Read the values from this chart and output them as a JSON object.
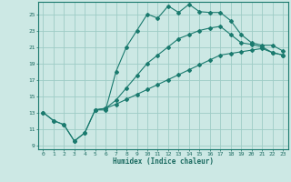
{
  "xlabel": "Humidex (Indice chaleur)",
  "background_color": "#cce8e4",
  "grid_color": "#9eccc6",
  "line_color": "#1a7a6e",
  "xlim": [
    -0.5,
    23.5
  ],
  "ylim": [
    8.5,
    26.5
  ],
  "xticks": [
    0,
    1,
    2,
    3,
    4,
    5,
    6,
    7,
    8,
    9,
    10,
    11,
    12,
    13,
    14,
    15,
    16,
    17,
    18,
    19,
    20,
    21,
    22,
    23
  ],
  "yticks": [
    9,
    11,
    13,
    15,
    17,
    19,
    21,
    23,
    25
  ],
  "line1_x": [
    0,
    1,
    2,
    3,
    4,
    5,
    6,
    7,
    8,
    9,
    10,
    11,
    12,
    13,
    14,
    15,
    16,
    17,
    18,
    19,
    20,
    21,
    22,
    23
  ],
  "line1_y": [
    13,
    12,
    11.5,
    9.5,
    10.5,
    13.3,
    13.3,
    18,
    21,
    23,
    25,
    24.5,
    26,
    25.2,
    26.2,
    25.3,
    25.2,
    25.2,
    24.2,
    22.5,
    21.5,
    21.2,
    21.2,
    20.5
  ],
  "line2_x": [
    0,
    1,
    2,
    3,
    4,
    5,
    6,
    7,
    8,
    9,
    10,
    11,
    12,
    13,
    14,
    15,
    16,
    17,
    18,
    19,
    20,
    21,
    22,
    23
  ],
  "line2_y": [
    13,
    12,
    11.5,
    9.5,
    10.5,
    13.3,
    13.5,
    14.0,
    14.6,
    15.2,
    15.8,
    16.4,
    17.0,
    17.6,
    18.2,
    18.8,
    19.4,
    20.0,
    20.2,
    20.4,
    20.6,
    20.8,
    20.3,
    20.0
  ],
  "line3_x": [
    5,
    6,
    7,
    8,
    9,
    10,
    11,
    12,
    13,
    14,
    15,
    16,
    17,
    18,
    19,
    20,
    21,
    22,
    23
  ],
  "line3_y": [
    13.3,
    13.5,
    14.5,
    16.0,
    17.5,
    19.0,
    20.0,
    21.0,
    22.0,
    22.5,
    23.0,
    23.3,
    23.5,
    22.5,
    21.5,
    21.3,
    21.0,
    20.3,
    20.0
  ]
}
